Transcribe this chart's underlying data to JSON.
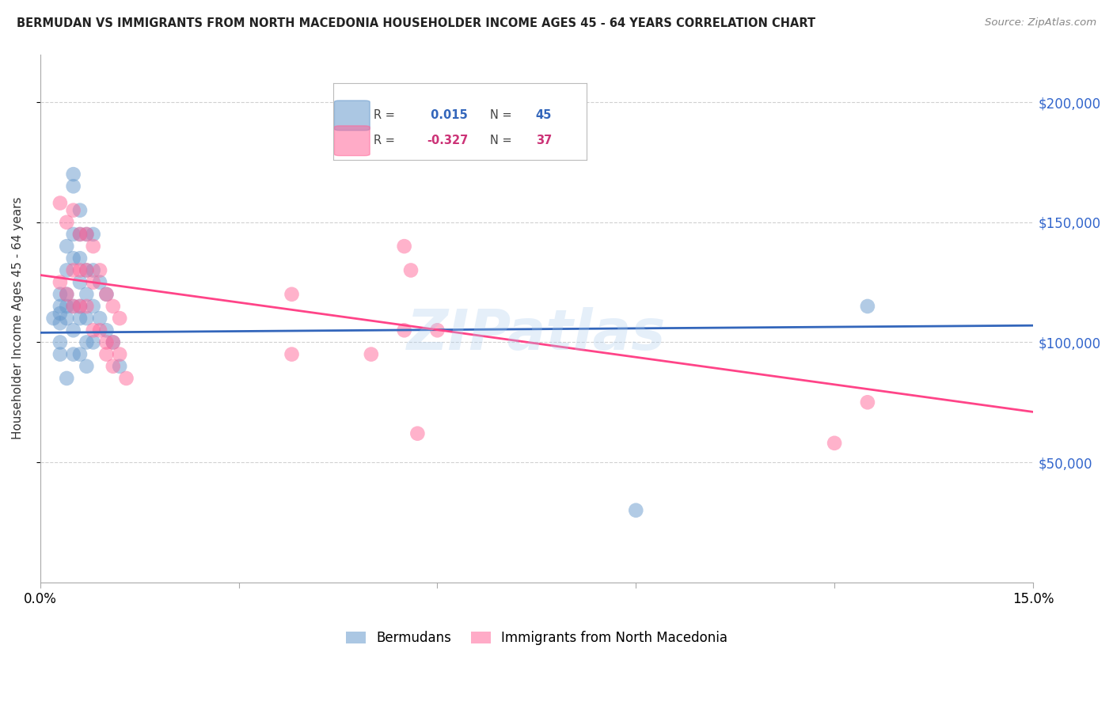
{
  "title": "BERMUDAN VS IMMIGRANTS FROM NORTH MACEDONIA HOUSEHOLDER INCOME AGES 45 - 64 YEARS CORRELATION CHART",
  "source": "Source: ZipAtlas.com",
  "ylabel": "Householder Income Ages 45 - 64 years",
  "xlim": [
    0,
    0.15
  ],
  "ylim": [
    0,
    220000
  ],
  "yticks": [
    50000,
    100000,
    150000,
    200000
  ],
  "ytick_labels": [
    "$50,000",
    "$100,000",
    "$150,000",
    "$200,000"
  ],
  "xticks": [
    0.0,
    0.03,
    0.06,
    0.09,
    0.12,
    0.15
  ],
  "xtick_labels": [
    "0.0%",
    "",
    "",
    "",
    "",
    "15.0%"
  ],
  "legend_label1": "Bermudans",
  "legend_label2": "Immigrants from North Macedonia",
  "R1": 0.015,
  "N1": 45,
  "R2": -0.327,
  "N2": 37,
  "blue_color": "#6699CC",
  "pink_color": "#FF6699",
  "blue_line_color": "#3366BB",
  "pink_line_color": "#FF4488",
  "blue_scatter_x": [
    0.002,
    0.003,
    0.003,
    0.003,
    0.003,
    0.003,
    0.003,
    0.004,
    0.004,
    0.004,
    0.004,
    0.004,
    0.004,
    0.005,
    0.005,
    0.005,
    0.005,
    0.005,
    0.005,
    0.005,
    0.006,
    0.006,
    0.006,
    0.006,
    0.006,
    0.006,
    0.006,
    0.007,
    0.007,
    0.007,
    0.007,
    0.007,
    0.007,
    0.008,
    0.008,
    0.008,
    0.008,
    0.009,
    0.009,
    0.01,
    0.01,
    0.011,
    0.012,
    0.125,
    0.09
  ],
  "blue_scatter_y": [
    110000,
    120000,
    115000,
    112000,
    108000,
    100000,
    95000,
    140000,
    130000,
    120000,
    115000,
    110000,
    85000,
    170000,
    165000,
    145000,
    135000,
    115000,
    105000,
    95000,
    155000,
    145000,
    135000,
    125000,
    115000,
    110000,
    95000,
    145000,
    130000,
    120000,
    110000,
    100000,
    90000,
    145000,
    130000,
    115000,
    100000,
    125000,
    110000,
    120000,
    105000,
    100000,
    90000,
    115000,
    30000
  ],
  "pink_scatter_x": [
    0.003,
    0.003,
    0.004,
    0.004,
    0.005,
    0.005,
    0.005,
    0.006,
    0.006,
    0.006,
    0.007,
    0.007,
    0.007,
    0.008,
    0.008,
    0.008,
    0.009,
    0.009,
    0.01,
    0.01,
    0.01,
    0.011,
    0.011,
    0.011,
    0.012,
    0.012,
    0.013,
    0.055,
    0.055,
    0.056,
    0.057,
    0.12,
    0.125,
    0.038,
    0.038,
    0.06,
    0.05
  ],
  "pink_scatter_y": [
    158000,
    125000,
    150000,
    120000,
    155000,
    130000,
    115000,
    145000,
    130000,
    115000,
    145000,
    130000,
    115000,
    140000,
    125000,
    105000,
    130000,
    105000,
    120000,
    100000,
    95000,
    115000,
    100000,
    90000,
    110000,
    95000,
    85000,
    140000,
    105000,
    130000,
    62000,
    58000,
    75000,
    120000,
    95000,
    105000,
    95000
  ],
  "blue_line_x": [
    0.0,
    0.15
  ],
  "blue_line_y": [
    104000,
    107000
  ],
  "pink_line_x": [
    0.0,
    0.15
  ],
  "pink_line_y": [
    128000,
    71000
  ],
  "watermark": "ZIPatlas",
  "background_color": "#ffffff",
  "grid_color": "#cccccc"
}
